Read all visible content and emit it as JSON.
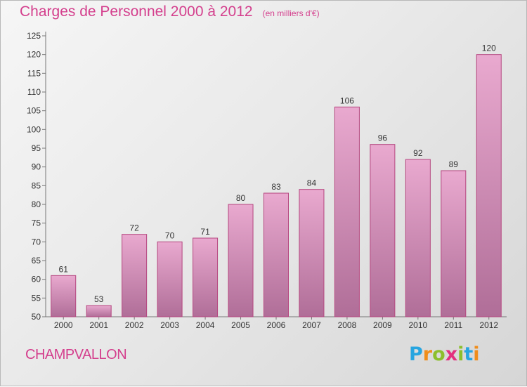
{
  "title": "Charges de Personnel 2000 à 2012",
  "subtitle": "(en milliers d'€)",
  "commune": "CHAMPVALLON",
  "logo_text": "Proxiti",
  "colors": {
    "title": "#d43f8d",
    "bar_top": "#e9a9cf",
    "bar_bottom": "#b06e98",
    "bar_stroke": "#b5467f",
    "axis": "#777777",
    "tick_text": "#333333"
  },
  "chart_data": {
    "type": "bar",
    "title": "Charges de Personnel 2000 à 2012",
    "subtitle": "(en milliers d'€)",
    "categories": [
      "2000",
      "2001",
      "2002",
      "2003",
      "2004",
      "2005",
      "2006",
      "2007",
      "2008",
      "2009",
      "2010",
      "2011",
      "2012"
    ],
    "values": [
      61,
      53,
      72,
      70,
      71,
      80,
      83,
      84,
      106,
      96,
      92,
      89,
      120
    ],
    "ylim": [
      50,
      125
    ],
    "yticks": [
      50,
      55,
      60,
      65,
      70,
      75,
      80,
      85,
      90,
      95,
      100,
      105,
      110,
      115,
      120,
      125
    ],
    "grid": false,
    "data_labels": true
  }
}
